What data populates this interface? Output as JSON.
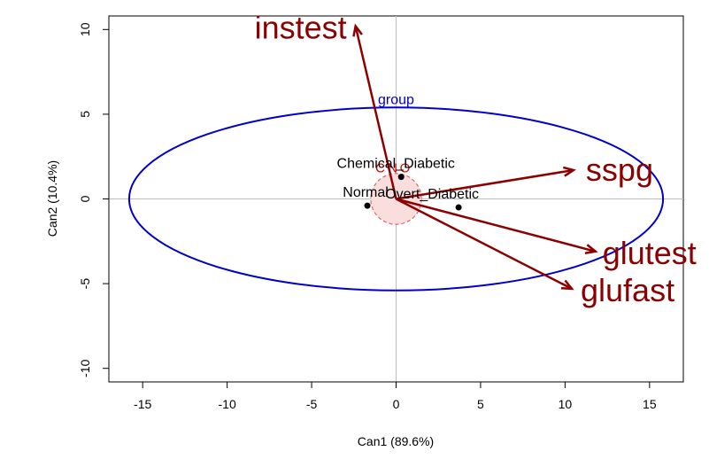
{
  "chart_data": {
    "type": "scatter",
    "title": "",
    "xlabel": "Can1 (89.6%)",
    "ylabel": "Can2 (10.4%)",
    "xlim": [
      -17,
      17
    ],
    "ylim": [
      -10.8,
      10.8
    ],
    "xticks": [
      -15,
      -10,
      -5,
      0,
      5,
      10,
      15
    ],
    "yticks": [
      -10,
      -5,
      0,
      5,
      10
    ],
    "reference_lines": {
      "x": 0,
      "y": 0
    },
    "groups": [
      {
        "label": "Chemical_Diabetic",
        "x": 0.3,
        "y": 1.3
      },
      {
        "label": "Normal",
        "x": -1.7,
        "y": -0.4
      },
      {
        "label": "Overt_Diabetic",
        "x": 3.7,
        "y": -0.5
      }
    ],
    "variables": [
      {
        "label": "instest",
        "x": -2.4,
        "y": 10.2
      },
      {
        "label": "sspg",
        "x": 10.5,
        "y": 1.7
      },
      {
        "label": "glutest",
        "x": 11.8,
        "y": -3.1
      },
      {
        "label": "glufast",
        "x": 10.4,
        "y": -5.3
      }
    ],
    "ellipse": {
      "label": "group",
      "center": [
        0,
        0
      ],
      "rx": 15.8,
      "ry": 5.4,
      "color": "#0000cd"
    },
    "confidence_circles": {
      "labels": [
        "C",
        "N",
        "O"
      ],
      "radius": 1.5,
      "fill": "#f9dede",
      "stroke": "#e06060"
    },
    "colors": {
      "variable": "#8b0000",
      "ellipse": "#0000cd",
      "ci_label": "#dd0000",
      "reference": "#bebebe"
    }
  }
}
